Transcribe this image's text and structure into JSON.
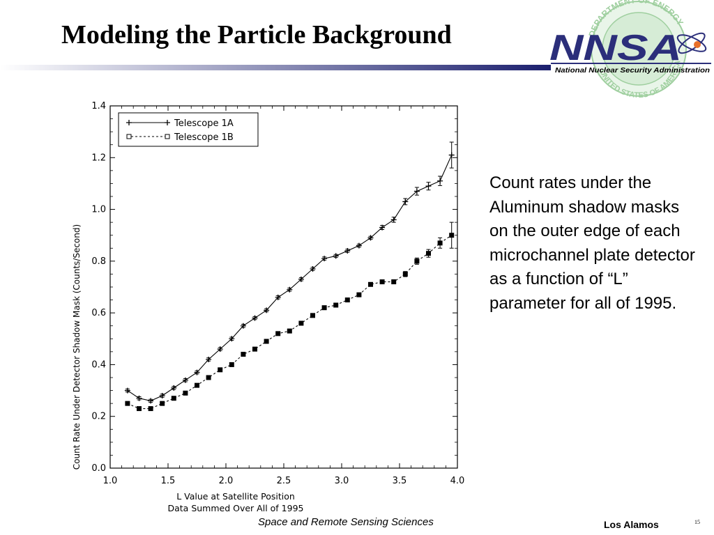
{
  "slide": {
    "title": "Modeling the Particle Background",
    "caption": "Count rates under the Aluminum shadow masks on the outer edge of each microchannel plate detector as a function of “L” parameter for all of 1995.",
    "footer_center": "Space and Remote Sensing Sciences",
    "footer_right": "Los Alamos",
    "page_number": "15"
  },
  "logo": {
    "text": "NNSA",
    "tagline": "National Nuclear Security Administration",
    "seal_top": "DEPARTMENT OF ENERGY",
    "seal_bottom": "UNITED STATES OF AMERICA",
    "color_navy": "#2b2e7a",
    "color_seal": "#9fcf9f"
  },
  "colors": {
    "rule_gradient": [
      "#ffffff",
      "#1b1f6e"
    ]
  },
  "chart_data": {
    "type": "line",
    "title": "",
    "xlabel": "L Value at Satellite Position",
    "xlabel2": "Data Summed Over All of 1995",
    "ylabel": "Count Rate Under Detector Shadow Mask (Counts/Second)",
    "xlim": [
      1.0,
      4.0
    ],
    "ylim": [
      0.0,
      1.4
    ],
    "x_ticks": [
      "1.0",
      "1.5",
      "2.0",
      "2.5",
      "3.0",
      "3.5",
      "4.0"
    ],
    "y_ticks": [
      "0.0",
      "0.2",
      "0.4",
      "0.6",
      "0.8",
      "1.0",
      "1.2",
      "1.4"
    ],
    "grid": false,
    "legend_position": "top-left",
    "x": [
      1.15,
      1.25,
      1.35,
      1.45,
      1.55,
      1.65,
      1.75,
      1.85,
      1.95,
      2.05,
      2.15,
      2.25,
      2.35,
      2.45,
      2.55,
      2.65,
      2.75,
      2.85,
      2.95,
      3.05,
      3.15,
      3.25,
      3.35,
      3.45,
      3.55,
      3.65,
      3.75,
      3.85,
      3.95
    ],
    "series": [
      {
        "name": "Telescope 1A",
        "marker": "plus",
        "line": "solid",
        "values": [
          0.3,
          0.27,
          0.26,
          0.28,
          0.31,
          0.34,
          0.37,
          0.42,
          0.46,
          0.5,
          0.55,
          0.58,
          0.61,
          0.66,
          0.69,
          0.73,
          0.77,
          0.81,
          0.82,
          0.84,
          0.86,
          0.89,
          0.93,
          0.96,
          1.03,
          1.07,
          1.09,
          1.11,
          1.21
        ],
        "errors": [
          0.006,
          0.006,
          0.006,
          0.006,
          0.006,
          0.006,
          0.006,
          0.006,
          0.006,
          0.006,
          0.006,
          0.006,
          0.006,
          0.006,
          0.006,
          0.006,
          0.006,
          0.006,
          0.006,
          0.006,
          0.006,
          0.006,
          0.008,
          0.01,
          0.012,
          0.015,
          0.015,
          0.018,
          0.05
        ]
      },
      {
        "name": "Telescope 1B",
        "marker": "square",
        "line": "dashed",
        "values": [
          0.25,
          0.23,
          0.23,
          0.25,
          0.27,
          0.29,
          0.32,
          0.35,
          0.38,
          0.4,
          0.44,
          0.46,
          0.49,
          0.52,
          0.53,
          0.56,
          0.59,
          0.62,
          0.63,
          0.65,
          0.67,
          0.71,
          0.72,
          0.72,
          0.75,
          0.8,
          0.83,
          0.87,
          0.9
        ],
        "errors": [
          0.004,
          0.004,
          0.004,
          0.004,
          0.004,
          0.004,
          0.004,
          0.004,
          0.004,
          0.004,
          0.004,
          0.004,
          0.004,
          0.004,
          0.004,
          0.004,
          0.004,
          0.004,
          0.004,
          0.004,
          0.004,
          0.006,
          0.006,
          0.008,
          0.01,
          0.012,
          0.015,
          0.02,
          0.05
        ]
      }
    ]
  }
}
